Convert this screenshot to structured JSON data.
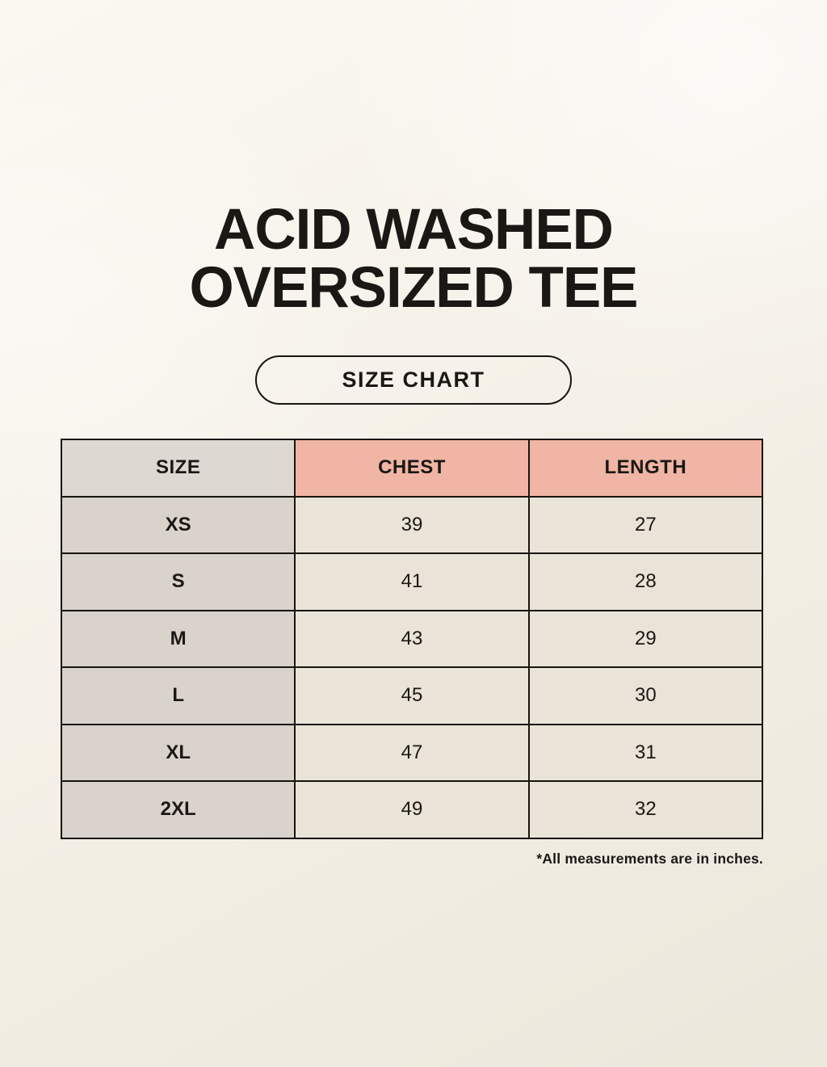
{
  "header": {
    "title_line1": "ACID WASHED",
    "title_line2": "OVERSIZED TEE",
    "badge_label": "SIZE CHART"
  },
  "footer": {
    "note": "*All measurements are in inches."
  },
  "colors": {
    "page_background": "#f3efe6",
    "accent_salmon": "#f0b5a4",
    "neutral_greige": "#d9d3cc",
    "cell_cream": "#eae3d7",
    "border_black": "#17150f"
  },
  "chart_data": {
    "type": "table",
    "title": "ACID WASHED OVERSIZED TEE",
    "subtitle": "SIZE CHART",
    "columns": [
      "SIZE",
      "CHEST",
      "LENGTH"
    ],
    "rows": [
      [
        "XS",
        "39",
        "27"
      ],
      [
        "S",
        "41",
        "28"
      ],
      [
        "M",
        "43",
        "29"
      ],
      [
        "L",
        "45",
        "30"
      ],
      [
        "XL",
        "47",
        "31"
      ],
      [
        "2XL",
        "49",
        "32"
      ]
    ],
    "units": "inches"
  }
}
